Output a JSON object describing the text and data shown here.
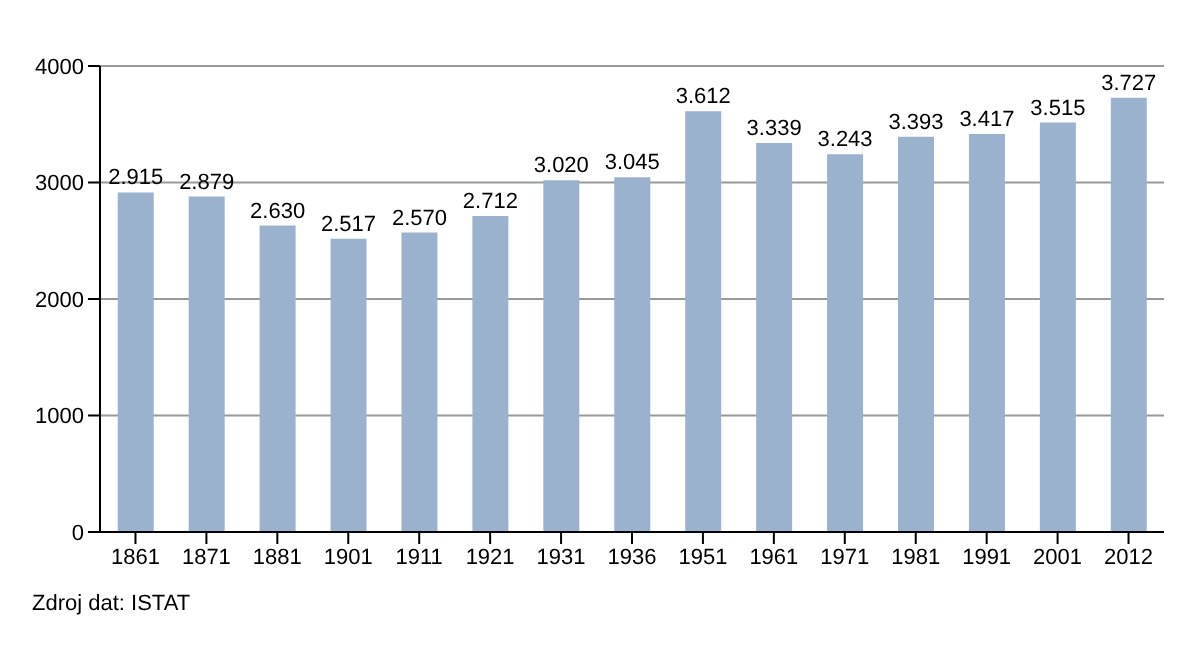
{
  "chart_data": {
    "type": "bar",
    "categories": [
      "1861",
      "1871",
      "1881",
      "1901",
      "1911",
      "1921",
      "1931",
      "1936",
      "1951",
      "1961",
      "1971",
      "1981",
      "1991",
      "2001",
      "2012"
    ],
    "values": [
      2915,
      2879,
      2630,
      2517,
      2570,
      2712,
      3020,
      3045,
      3612,
      3339,
      3243,
      3393,
      3417,
      3515,
      3727
    ],
    "value_labels": [
      "2.915",
      "2.879",
      "2.630",
      "2.517",
      "2.570",
      "2.712",
      "3.020",
      "3.045",
      "3.612",
      "3.339",
      "3.243",
      "3.393",
      "3.417",
      "3.515",
      "3.727"
    ],
    "color": "#9bb2cf",
    "ylim": [
      0,
      4000
    ],
    "yticks": [
      0,
      1000,
      2000,
      3000,
      4000
    ],
    "grid": "y",
    "annotations": [
      "Zdroj dat: ISTAT"
    ]
  }
}
